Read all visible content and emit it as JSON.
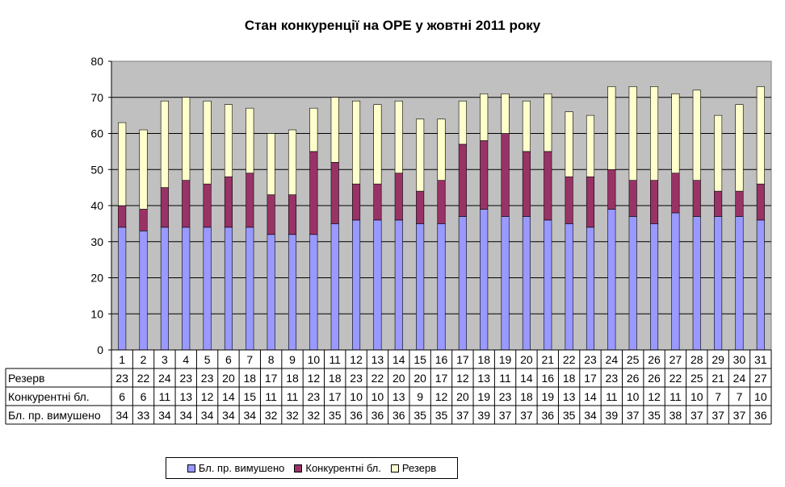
{
  "chart_data": {
    "type": "bar",
    "stacked": true,
    "title": "Стан конкуренції на ОРЕ  у жовтні 2011 року",
    "ylim": [
      0,
      80
    ],
    "yticks": [
      0,
      10,
      20,
      30,
      40,
      50,
      60,
      70,
      80
    ],
    "grid": true,
    "legend_position": "bottom",
    "categories": [
      "1",
      "2",
      "3",
      "4",
      "5",
      "6",
      "7",
      "8",
      "9",
      "10",
      "11",
      "12",
      "13",
      "14",
      "15",
      "16",
      "17",
      "18",
      "19",
      "20",
      "21",
      "22",
      "23",
      "24",
      "25",
      "26",
      "27",
      "28",
      "29",
      "30",
      "31"
    ],
    "series": [
      {
        "name": "Бл. пр. вимушено",
        "color": "#9999ff",
        "values": [
          34,
          33,
          34,
          34,
          34,
          34,
          34,
          32,
          32,
          32,
          35,
          36,
          36,
          36,
          35,
          35,
          37,
          39,
          37,
          37,
          36,
          35,
          34,
          39,
          37,
          35,
          38,
          37,
          37,
          37,
          36
        ]
      },
      {
        "name": "Конкурентні бл.",
        "color": "#993366",
        "values": [
          6,
          6,
          11,
          13,
          12,
          14,
          15,
          11,
          11,
          23,
          17,
          10,
          10,
          13,
          9,
          12,
          20,
          19,
          23,
          18,
          19,
          13,
          14,
          11,
          10,
          12,
          11,
          10,
          7,
          7,
          10
        ]
      },
      {
        "name": "Резерв",
        "color": "#ffffcc",
        "values": [
          23,
          22,
          24,
          23,
          23,
          20,
          18,
          17,
          18,
          12,
          18,
          23,
          22,
          20,
          20,
          17,
          12,
          13,
          11,
          14,
          16,
          18,
          17,
          23,
          26,
          26,
          22,
          25,
          21,
          24,
          27
        ]
      }
    ],
    "table_rows": [
      "Резерв",
      "Конкурентні бл.",
      "Бл. пр. вимушено"
    ]
  }
}
